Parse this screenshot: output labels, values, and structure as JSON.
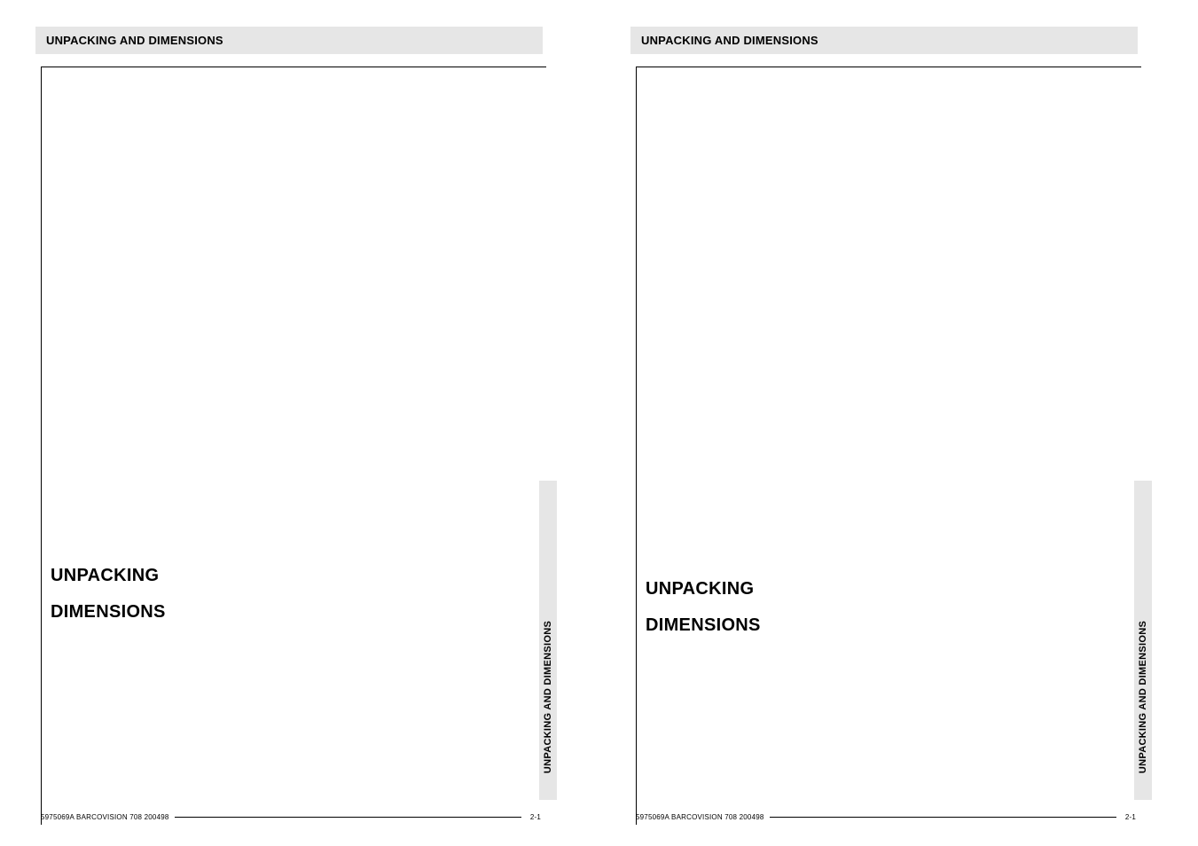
{
  "pages": [
    {
      "header": "UNPACKING AND DIMENSIONS",
      "side_tab": "UNPACKING AND DIMENSIONS",
      "heading1": "UNPACKING",
      "heading2": "DIMENSIONS",
      "footer_code": "5975069A BARCOVISION 708 200498",
      "footer_page": "2-1"
    },
    {
      "header": "UNPACKING AND DIMENSIONS",
      "side_tab": "UNPACKING AND DIMENSIONS",
      "heading1": "UNPACKING",
      "heading2": "DIMENSIONS",
      "footer_code": "5975069A BARCOVISION 708 200498",
      "footer_page": "2-1"
    }
  ],
  "style": {
    "header_bg": "#e6e6e6",
    "header_fontsize": 13,
    "header_fontweight": "bold",
    "side_tab_bg": "#e6e6e6",
    "side_tab_fontsize": 11,
    "heading_fontsize": 20,
    "heading_fontweight": "bold",
    "footer_fontsize": 8,
    "page_bg": "#ffffff",
    "border_color": "#000000"
  }
}
